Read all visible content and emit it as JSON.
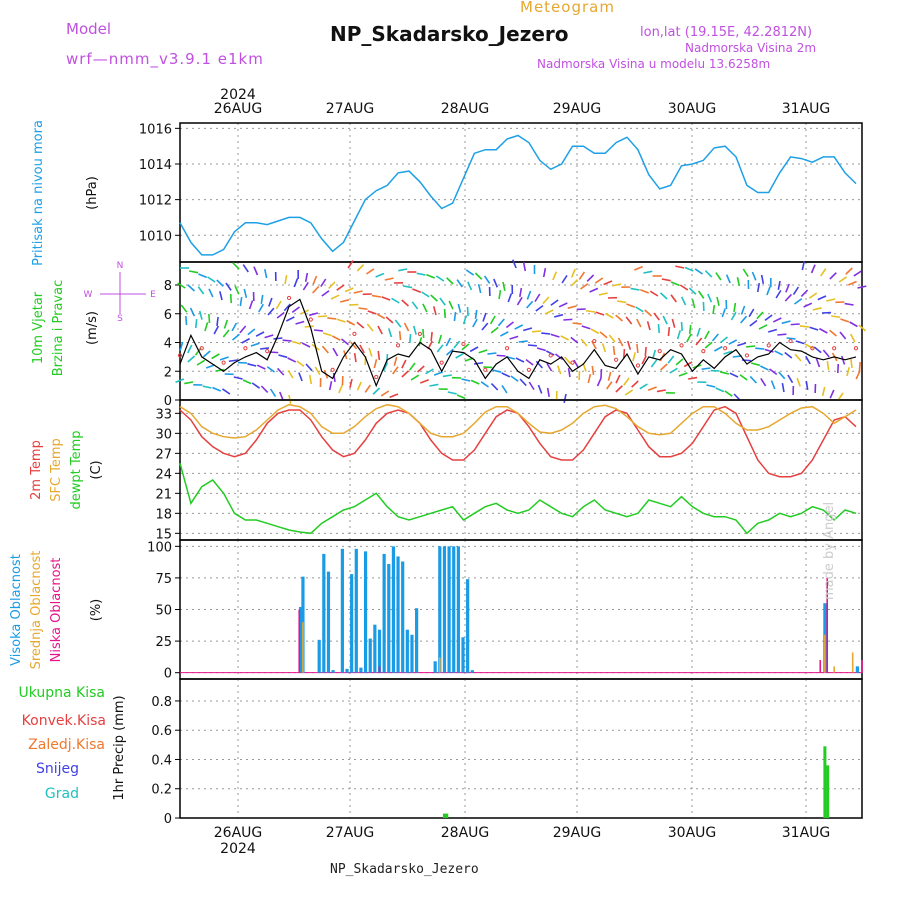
{
  "header": {
    "model_label": "Model",
    "model_name": "wrf—nmm_v3.9.1 e1km",
    "product": "Meteogram",
    "station": "NP_Skadarsko_Jezero",
    "coords": "lon,lat (19.15E, 42.2812N)",
    "elevation": "Nadmorska Visina 2m",
    "model_elevation": "Nadmorska Visina u modelu 13.6258m",
    "footer_station": "NP_Skadarsko_Jezero",
    "credit": "made by Angel"
  },
  "time_axis": {
    "year": "2024",
    "day_labels": [
      "26AUG",
      "27AUG",
      "28AUG",
      "29AUG",
      "30AUG",
      "31AUG"
    ],
    "start_hour_offset": 0,
    "span_hours": 147
  },
  "colors": {
    "pressure": "#1ea0e6",
    "temp2m": "#e64040",
    "sfc": "#e6a830",
    "dewpt": "#22cc22",
    "cloud_high": "#1a9be6",
    "cloud_mid": "#e6a830",
    "cloud_low": "#e6148c",
    "precip_total": "#22cc22",
    "precip_conv": "#e64040",
    "precip_frz": "#f07830",
    "precip_snow": "#4040e6",
    "precip_grad": "#20c0c0",
    "wind_label": "#22cc22",
    "compass": "#c050e0"
  },
  "chart_data": [
    {
      "type": "line",
      "panel": "pressure",
      "ylabel": [
        "Pritisak na nivou mora",
        "(hPa)"
      ],
      "ylim": [
        1008.5,
        1016.3
      ],
      "yticks": [
        1010,
        1012,
        1014,
        1016
      ],
      "grid": true,
      "series": [
        {
          "values": [
            1010.7,
            1009.6,
            1008.9,
            1008.9,
            1009.2,
            1010.2,
            1010.7,
            1010.7,
            1010.6,
            1010.8,
            1011.0,
            1011.0,
            1010.7,
            1009.8,
            1009.1,
            1009.6,
            1010.8,
            1012.0,
            1012.5,
            1012.8,
            1013.5,
            1013.6,
            1013.0,
            1012.2,
            1011.5,
            1011.8,
            1013.2,
            1014.6,
            1014.8,
            1014.8,
            1015.4,
            1015.6,
            1015.2,
            1014.2,
            1013.7,
            1014.0,
            1015.0,
            1015.0,
            1014.6,
            1014.6,
            1015.2,
            1015.5,
            1014.8,
            1013.4,
            1012.6,
            1012.8,
            1013.9,
            1014.0,
            1014.2,
            1014.9,
            1015.0,
            1014.4,
            1012.8,
            1012.4,
            1012.4,
            1013.5,
            1014.4,
            1014.3,
            1014.1,
            1014.4,
            1014.4,
            1013.5,
            1012.9
          ],
          "step_hours": 2.35
        }
      ]
    },
    {
      "type": "line",
      "panel": "wind",
      "ylabel": [
        "10m Vjetar",
        "Brzina i Pravac",
        "(m/s)"
      ],
      "ylim": [
        0,
        9.6
      ],
      "yticks": [
        0,
        2,
        4,
        6,
        8
      ],
      "grid": true,
      "series": [
        {
          "values": [
            2.5,
            4.5,
            3.0,
            2.5,
            2.0,
            2.6,
            3.0,
            3.3,
            2.8,
            4.5,
            6.5,
            7.0,
            5.0,
            2.0,
            1.5,
            3.0,
            4.0,
            3.0,
            1.0,
            2.8,
            3.2,
            3.0,
            4.0,
            3.5,
            2.0,
            3.4,
            3.3,
            2.8,
            1.5,
            2.5,
            3.0,
            2.0,
            1.5,
            2.8,
            2.5,
            3.0,
            2.0,
            2.5,
            3.5,
            2.4,
            2.2,
            3.2,
            1.8,
            3.0,
            2.8,
            3.5,
            3.2,
            2.0,
            2.8,
            2.2,
            3.0,
            3.5,
            2.5,
            3.0,
            3.2,
            4.0,
            3.5,
            3.4,
            3.0,
            2.8,
            3.0,
            2.8,
            3.0
          ],
          "step_hours": 2.35
        }
      ]
    },
    {
      "type": "line",
      "panel": "temperature",
      "ylabel": [
        "2m Temp",
        "SFC Temp",
        "dewpt Temp",
        "(C)"
      ],
      "ylim": [
        14,
        35
      ],
      "yticks": [
        15,
        18,
        21,
        24,
        27,
        30,
        33
      ],
      "grid": true,
      "series": [
        {
          "name": "2m Temp",
          "values": [
            33.5,
            32.0,
            29.5,
            28.0,
            27.0,
            26.5,
            27.0,
            29.0,
            31.5,
            33.0,
            33.5,
            33.5,
            32.0,
            29.5,
            27.5,
            26.5,
            27.0,
            29.0,
            31.5,
            33.0,
            33.5,
            33.0,
            31.5,
            29.0,
            27.0,
            26.0,
            26.0,
            27.5,
            30.0,
            32.5,
            33.5,
            33.0,
            31.0,
            28.5,
            26.5,
            26.0,
            26.0,
            27.5,
            30.0,
            32.5,
            33.5,
            33.0,
            30.5,
            28.0,
            26.5,
            26.5,
            27.0,
            28.5,
            31.0,
            33.5,
            34.0,
            33.0,
            29.5,
            26.0,
            24.0,
            23.5,
            23.5,
            24.0,
            26.0,
            29.0,
            32.0,
            32.5,
            31.0
          ],
          "step_hours": 2.35
        },
        {
          "name": "SFC Temp",
          "values": [
            34.0,
            33.0,
            31.0,
            30.0,
            29.5,
            29.3,
            29.5,
            30.5,
            32.0,
            33.5,
            34.3,
            34.0,
            33.0,
            31.0,
            30.0,
            30.0,
            31.0,
            32.5,
            33.7,
            34.3,
            34.0,
            33.0,
            31.5,
            30.0,
            29.5,
            29.5,
            30.0,
            31.5,
            33.2,
            34.0,
            34.0,
            33.0,
            31.5,
            30.2,
            30.0,
            30.5,
            31.5,
            33.0,
            34.0,
            34.2,
            33.7,
            32.5,
            31.0,
            30.0,
            29.8,
            30.0,
            31.5,
            33.0,
            34.0,
            34.0,
            33.0,
            31.5,
            30.5,
            30.5,
            31.0,
            32.0,
            33.0,
            33.8,
            34.0,
            33.0,
            31.5,
            32.5,
            33.5
          ],
          "step_hours": 2.35
        },
        {
          "name": "dewpt Temp",
          "values": [
            25.5,
            19.5,
            22.0,
            23.0,
            21.0,
            18.0,
            17.0,
            17.0,
            16.5,
            16.0,
            15.5,
            15.2,
            15.0,
            16.5,
            17.5,
            18.5,
            19.0,
            20.0,
            21.0,
            19.0,
            17.5,
            17.0,
            17.5,
            18.0,
            18.5,
            19.0,
            17.0,
            18.0,
            19.0,
            19.5,
            18.5,
            18.0,
            18.5,
            20.0,
            19.0,
            18.0,
            17.5,
            19.0,
            20.0,
            18.5,
            18.0,
            17.5,
            18.0,
            20.0,
            19.5,
            19.0,
            20.5,
            19.0,
            18.0,
            17.5,
            17.5,
            17.0,
            15.0,
            16.5,
            17.0,
            18.0,
            17.5,
            18.0,
            19.0,
            18.5,
            17.0,
            18.5,
            18.0
          ],
          "step_hours": 2.35
        }
      ]
    },
    {
      "type": "bar",
      "panel": "clouds",
      "ylabel": [
        "Visoka Oblacnost",
        "Srednja Oblacnost",
        "Niska Oblacnost",
        "(%)"
      ],
      "ylim": [
        -5,
        105
      ],
      "yticks": [
        0,
        25,
        50,
        75,
        100
      ],
      "grid": true,
      "series": [
        {
          "name": "Visoka Oblacnost",
          "hours": [
            26,
            26.5,
            30,
            31,
            32,
            33,
            35,
            36,
            37,
            38,
            39,
            40,
            41,
            42,
            43,
            44,
            45,
            46,
            47,
            48,
            49,
            50,
            51,
            55,
            56,
            57,
            58,
            59,
            60,
            61,
            62,
            63,
            139,
            146
          ],
          "values": [
            52,
            76,
            26,
            94,
            80,
            2,
            98,
            3,
            78,
            98,
            4,
            96,
            27,
            38,
            34,
            94,
            86,
            100,
            92,
            88,
            34,
            30,
            51,
            9,
            100,
            100,
            100,
            100,
            100,
            28,
            74,
            2,
            55,
            5
          ]
        },
        {
          "name": "Srednja Oblacnost",
          "hours": [
            26.5,
            56,
            139,
            141,
            145
          ],
          "values": [
            40,
            12,
            30,
            5,
            16
          ]
        },
        {
          "name": "Niska Oblacnost",
          "hours": [
            25.7,
            43,
            138,
            139.5,
            147
          ],
          "values": [
            50,
            5,
            10,
            75,
            10
          ]
        }
      ]
    },
    {
      "type": "bar",
      "panel": "precip",
      "ylabel": [
        "Ukupna Kisa",
        "Konvek.Kisa",
        "Zaledj.Kisa",
        "Snijeg",
        "Grad",
        "1hr Precip (mm)"
      ],
      "ylim": [
        0,
        0.95
      ],
      "yticks": [
        0,
        0.2,
        0.4,
        0.6,
        0.8
      ],
      "grid": true,
      "series": [
        {
          "name": "Ukupna Kisa",
          "hours": [
            57,
            57.5,
            139,
            139.6
          ],
          "values": [
            0.03,
            0.03,
            0.49,
            0.36
          ]
        }
      ]
    }
  ],
  "compass": {
    "n": "N",
    "s": "S",
    "e": "E",
    "w": "W"
  }
}
